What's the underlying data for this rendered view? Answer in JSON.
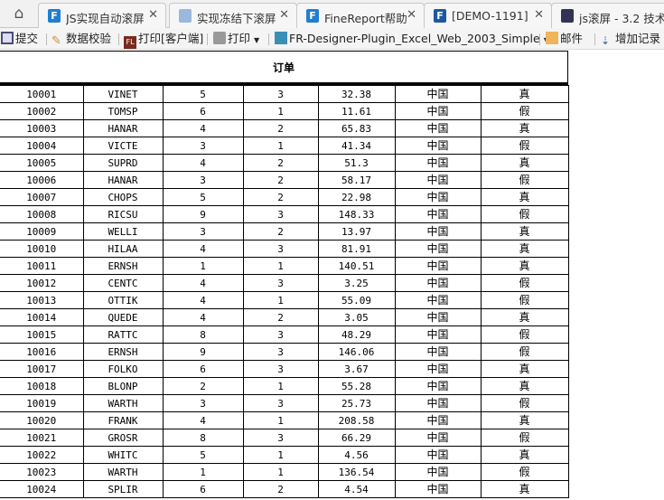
{
  "tabs": [
    {
      "title": "JS实现自动滚屏",
      "icon": "finereport-icon",
      "color": "#1e7fd0"
    },
    {
      "title": "实现冻结下滚屏",
      "icon": "page-icon",
      "color": "#9ab8dc"
    },
    {
      "title": "FineReport帮助",
      "icon": "finereport-icon",
      "color": "#1e7fd0"
    },
    {
      "title": "[DEMO-1191]",
      "icon": "finereport-icon",
      "color": "#1b5aa0"
    },
    {
      "title": "js滚屏 - 3.2 技术",
      "icon": "tools-icon",
      "color": "#335"
    }
  ],
  "toolbar": {
    "submit": "提交",
    "validate": "数据校验",
    "print_client": "打印[客户端]",
    "print": "打印",
    "template": "FR-Designer-Plugin_Excel_Web_2003_Simple",
    "mail": "邮件",
    "add_record": "增加记录"
  },
  "report": {
    "title": "订单",
    "rows": [
      [
        "10001",
        "VINET",
        "5",
        "3",
        "32.38",
        "中国",
        "真"
      ],
      [
        "10002",
        "TOMSP",
        "6",
        "1",
        "11.61",
        "中国",
        "假"
      ],
      [
        "10003",
        "HANAR",
        "4",
        "2",
        "65.83",
        "中国",
        "真"
      ],
      [
        "10004",
        "VICTE",
        "3",
        "1",
        "41.34",
        "中国",
        "假"
      ],
      [
        "10005",
        "SUPRD",
        "4",
        "2",
        "51.3",
        "中国",
        "真"
      ],
      [
        "10006",
        "HANAR",
        "3",
        "2",
        "58.17",
        "中国",
        "假"
      ],
      [
        "10007",
        "CHOPS",
        "5",
        "2",
        "22.98",
        "中国",
        "真"
      ],
      [
        "10008",
        "RICSU",
        "9",
        "3",
        "148.33",
        "中国",
        "假"
      ],
      [
        "10009",
        "WELLI",
        "3",
        "2",
        "13.97",
        "中国",
        "真"
      ],
      [
        "10010",
        "HILAA",
        "4",
        "3",
        "81.91",
        "中国",
        "真"
      ],
      [
        "10011",
        "ERNSH",
        "1",
        "1",
        "140.51",
        "中国",
        "真"
      ],
      [
        "10012",
        "CENTC",
        "4",
        "3",
        "3.25",
        "中国",
        "假"
      ],
      [
        "10013",
        "OTTIK",
        "4",
        "1",
        "55.09",
        "中国",
        "假"
      ],
      [
        "10014",
        "QUEDE",
        "4",
        "2",
        "3.05",
        "中国",
        "真"
      ],
      [
        "10015",
        "RATTC",
        "8",
        "3",
        "48.29",
        "中国",
        "假"
      ],
      [
        "10016",
        "ERNSH",
        "9",
        "3",
        "146.06",
        "中国",
        "假"
      ],
      [
        "10017",
        "FOLKO",
        "6",
        "3",
        "3.67",
        "中国",
        "真"
      ],
      [
        "10018",
        "BLONP",
        "2",
        "1",
        "55.28",
        "中国",
        "真"
      ],
      [
        "10019",
        "WARTH",
        "3",
        "3",
        "25.73",
        "中国",
        "假"
      ],
      [
        "10020",
        "FRANK",
        "4",
        "1",
        "208.58",
        "中国",
        "真"
      ],
      [
        "10021",
        "GROSR",
        "8",
        "3",
        "66.29",
        "中国",
        "假"
      ],
      [
        "10022",
        "WHITC",
        "5",
        "1",
        "4.56",
        "中国",
        "真"
      ],
      [
        "10023",
        "WARTH",
        "1",
        "1",
        "136.54",
        "中国",
        "假"
      ],
      [
        "10024",
        "SPLIR",
        "6",
        "2",
        "4.54",
        "中国",
        "真"
      ]
    ]
  }
}
